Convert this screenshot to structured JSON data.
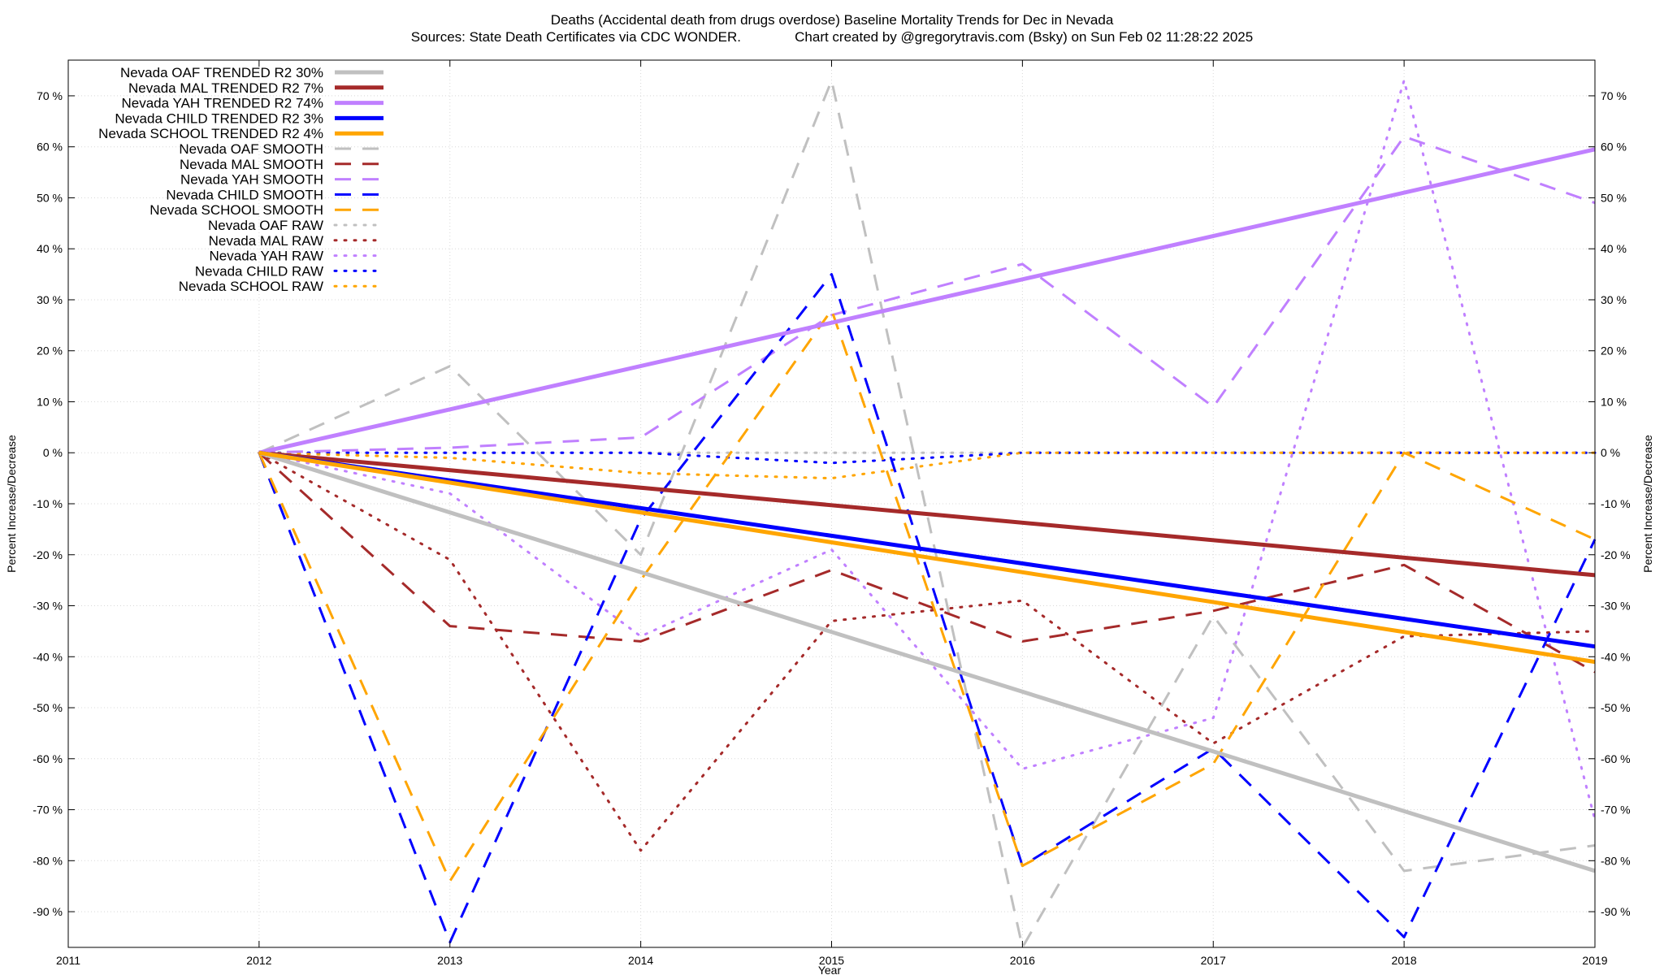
{
  "chart_data": {
    "type": "line",
    "title": "Deaths (Accidental death from drugs overdose)  Baseline Mortality Trends for Dec in Nevada",
    "subtitle": "Sources: State Death Certificates via CDC WONDER.              Chart created by @gregorytravis.com (Bsky) on Sun Feb 02 11:28:22 2025",
    "xlabel": "Year",
    "ylabel": "Percent Increase/Decrease",
    "xlim": [
      2011,
      2019
    ],
    "ylim": [
      -97,
      77
    ],
    "x_ticks": [
      "2011",
      "2012",
      "2013",
      "2014",
      "2015",
      "2016",
      "2017",
      "2018",
      "2019"
    ],
    "y_ticks": [
      "70 %",
      "60 %",
      "50 %",
      "40 %",
      "30 %",
      "20 %",
      "10 %",
      "0 %",
      "-10 %",
      "-20 %",
      "-30 %",
      "-40 %",
      "-50 %",
      "-60 %",
      "-70 %",
      "-80 %",
      "-90 %"
    ],
    "y_tick_values": [
      70,
      60,
      50,
      40,
      30,
      20,
      10,
      0,
      -10,
      -20,
      -30,
      -40,
      -50,
      -60,
      -70,
      -80,
      -90
    ],
    "grid": true,
    "legend_position": "top-left",
    "series": [
      {
        "name": "Nevada OAF TRENDED R2  30%",
        "color": "#c0c0c0",
        "style": "solid",
        "x": [
          2012,
          2019
        ],
        "y": [
          0,
          -82
        ]
      },
      {
        "name": "Nevada MAL TRENDED R2   7%",
        "color": "#a52a2a",
        "style": "solid",
        "x": [
          2012,
          2019
        ],
        "y": [
          0,
          -24
        ]
      },
      {
        "name": "Nevada YAH TRENDED R2  74%",
        "color": "#c080ff",
        "style": "solid",
        "x": [
          2012,
          2019
        ],
        "y": [
          0,
          59.5
        ]
      },
      {
        "name": "Nevada CHILD TRENDED R2   3%",
        "color": "#0000ff",
        "style": "solid",
        "x": [
          2012,
          2019
        ],
        "y": [
          0,
          -38
        ]
      },
      {
        "name": "Nevada SCHOOL TRENDED R2   4%",
        "color": "#ffa500",
        "style": "solid",
        "x": [
          2012,
          2019
        ],
        "y": [
          0,
          -41
        ]
      },
      {
        "name": "Nevada OAF SMOOTH",
        "color": "#c0c0c0",
        "style": "dashed",
        "x": [
          2012,
          2013,
          2014,
          2015,
          2016,
          2017,
          2018,
          2019
        ],
        "y": [
          0,
          17,
          -20,
          73,
          -97,
          -32,
          -82,
          -77
        ]
      },
      {
        "name": "Nevada MAL SMOOTH",
        "color": "#a52a2a",
        "style": "dashed",
        "x": [
          2012,
          2013,
          2014,
          2015,
          2016,
          2017,
          2018,
          2019
        ],
        "y": [
          0,
          -34,
          -37,
          -23,
          -37,
          -31,
          -22,
          -43
        ]
      },
      {
        "name": "Nevada YAH SMOOTH",
        "color": "#c080ff",
        "style": "dashed",
        "x": [
          2012,
          2013,
          2014,
          2015,
          2016,
          2017,
          2018,
          2019
        ],
        "y": [
          0,
          1,
          3,
          27,
          37,
          9,
          62,
          49
        ]
      },
      {
        "name": "Nevada CHILD SMOOTH",
        "color": "#0000ff",
        "style": "dashed",
        "x": [
          2012,
          2013,
          2014,
          2015,
          2016,
          2017,
          2018,
          2019
        ],
        "y": [
          0,
          -96,
          -13,
          35,
          -81,
          -58,
          -95,
          -17
        ]
      },
      {
        "name": "Nevada SCHOOL SMOOTH",
        "color": "#ffa500",
        "style": "dashed",
        "x": [
          2012,
          2013,
          2014,
          2015,
          2016,
          2017,
          2018,
          2019
        ],
        "y": [
          0,
          -84,
          -25,
          28,
          -81,
          -61,
          0,
          -17
        ]
      },
      {
        "name": "Nevada OAF RAW",
        "color": "#c0c0c0",
        "style": "dotted",
        "x": [
          2012,
          2013,
          2014,
          2015,
          2016,
          2017,
          2018,
          2019
        ],
        "y": [
          0,
          0,
          0,
          0,
          0,
          0,
          0,
          0
        ]
      },
      {
        "name": "Nevada MAL RAW",
        "color": "#a52a2a",
        "style": "dotted",
        "x": [
          2012,
          2013,
          2014,
          2015,
          2016,
          2017,
          2018,
          2019
        ],
        "y": [
          0,
          -21,
          -78,
          -33,
          -29,
          -57,
          -36,
          -35
        ]
      },
      {
        "name": "Nevada YAH RAW",
        "color": "#c080ff",
        "style": "dotted",
        "x": [
          2012,
          2013,
          2014,
          2015,
          2016,
          2017,
          2018,
          2019
        ],
        "y": [
          0,
          -8,
          -36,
          -19,
          -62,
          -52,
          73,
          -72
        ]
      },
      {
        "name": "Nevada CHILD RAW",
        "color": "#0000ff",
        "style": "dotted",
        "x": [
          2012,
          2013,
          2014,
          2015,
          2016,
          2017,
          2018,
          2019
        ],
        "y": [
          0,
          0,
          0,
          -2,
          0,
          0,
          0,
          0
        ]
      },
      {
        "name": "Nevada SCHOOL RAW",
        "color": "#ffa500",
        "style": "dotted",
        "x": [
          2012,
          2013,
          2014,
          2015,
          2016,
          2017,
          2018,
          2019
        ],
        "y": [
          0,
          -1,
          -4,
          -5,
          0,
          0,
          0,
          0
        ]
      }
    ]
  }
}
